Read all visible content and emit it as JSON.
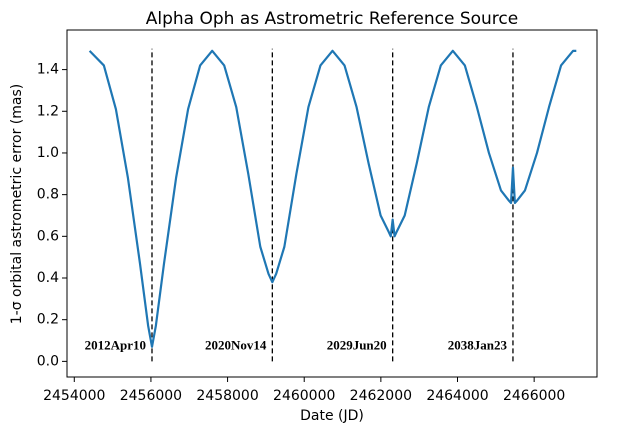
{
  "chart_data": {
    "type": "line",
    "title": "Alpha Oph as Astrometric Reference Source",
    "xlabel": "Date (JD)",
    "ylabel": "1-σ orbital astrometric error (mas)",
    "x": [
      2454400,
      2454772,
      2455086,
      2455400,
      2455714,
      2455928,
      2456028,
      2456128,
      2456342,
      2456656,
      2456970,
      2457284,
      2457598,
      2457912,
      2458226,
      2458540,
      2458854,
      2459068,
      2459168,
      2459268,
      2459482,
      2459796,
      2460110,
      2460424,
      2460738,
      2461052,
      2461366,
      2461680,
      2461994,
      2462208,
      2462258,
      2462308,
      2462358,
      2462408,
      2462622,
      2462936,
      2463250,
      2463564,
      2463878,
      2464192,
      2464506,
      2464820,
      2465134,
      2465347,
      2465397,
      2465447,
      2465497,
      2465547,
      2465760,
      2466074,
      2466388,
      2466702,
      2467016,
      2467100
    ],
    "series": [
      {
        "color": "#1f77b4",
        "values": [
          1.49,
          1.42,
          1.21,
          0.88,
          0.47,
          0.17,
          0.07,
          0.17,
          0.47,
          0.88,
          1.21,
          1.42,
          1.49,
          1.42,
          1.22,
          0.9,
          0.55,
          0.42,
          0.38,
          0.42,
          0.55,
          0.9,
          1.22,
          1.42,
          1.49,
          1.42,
          1.22,
          0.95,
          0.7,
          0.62,
          0.6,
          0.68,
          0.6,
          0.62,
          0.7,
          0.95,
          1.22,
          1.42,
          1.49,
          1.42,
          1.22,
          1.0,
          0.82,
          0.77,
          0.76,
          0.93,
          0.76,
          0.77,
          0.82,
          1.0,
          1.22,
          1.42,
          1.49,
          1.49
        ]
      }
    ],
    "xlim": [
      2453810,
      2467640
    ],
    "ylim": [
      -0.075,
      1.59
    ],
    "xticks": [
      2454000,
      2456000,
      2458000,
      2460000,
      2462000,
      2464000,
      2466000
    ],
    "yticks": [
      {
        "value": 0,
        "label": "0.0"
      },
      0.2,
      0.4,
      0.6,
      0.8,
      {
        "value": 1,
        "label": "1.0"
      },
      1.2,
      1.4
    ],
    "vline_range": [
      0,
      1.5
    ],
    "annotations": [
      {
        "x": 2456028,
        "label": "2012Apr10"
      },
      {
        "x": 2459168,
        "label": "2020Nov14"
      },
      {
        "x": 2462308,
        "label": "2029Jun20"
      },
      {
        "x": 2465447,
        "label": "2038Jan23"
      }
    ]
  }
}
